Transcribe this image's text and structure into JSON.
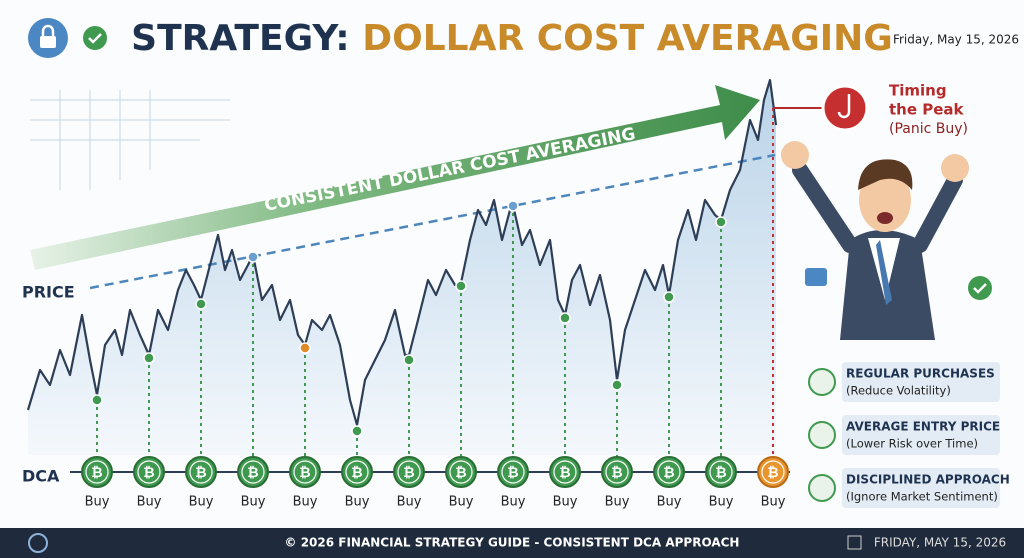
{
  "header": {
    "title_prefix": "STRATEGY:",
    "title_main": "DOLLAR COST AVERAGING",
    "date": "Friday, May 15, 2026"
  },
  "arrow_label": "CONSISTENT DOLLAR COST AVERAGING",
  "axis_labels": {
    "price": "PRICE",
    "dca": "DCA"
  },
  "coin_symbol": "₿",
  "buys": [
    "Buy",
    "Buy",
    "Buy",
    "Buy",
    "Buy",
    "Buy",
    "Buy",
    "Buy",
    "Buy",
    "Buy",
    "Buy",
    "Buy",
    "Buy",
    "Buy"
  ],
  "callout": {
    "title_lines": [
      "Timing",
      "the Peak"
    ],
    "subtitle": "(Panic Buy)"
  },
  "legend": [
    {
      "title": "REGULAR PURCHASES",
      "subtitle": "(Reduce Volatility)"
    },
    {
      "title": "AVERAGE ENTRY PRICE",
      "subtitle": "(Lower Risk over Time)"
    },
    {
      "title": "DISCIPLINED APPROACH",
      "subtitle": "(Ignore Market Sentiment)"
    }
  ],
  "footer": {
    "text": "© 2026 FINANCIAL STRATEGY GUIDE - CONSISTENT DCA APPROACH",
    "date": "FRIDAY, MAY 15, 2026"
  }
}
